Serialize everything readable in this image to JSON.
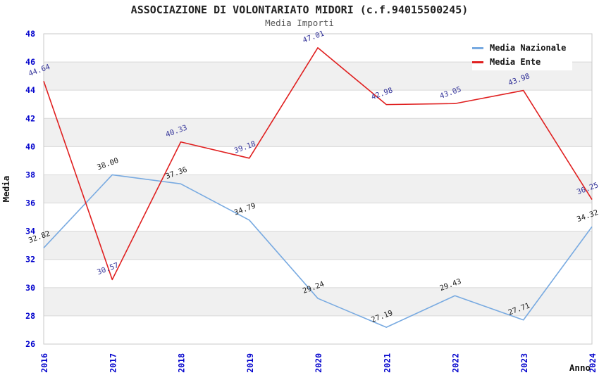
{
  "chart_data": {
    "type": "line",
    "title": "ASSOCIAZIONE DI VOLONTARIATO MIDORI (c.f.94015500245)",
    "subtitle": "Media Importi",
    "xlabel": "Anno",
    "ylabel": "Media",
    "categories": [
      "2016",
      "2017",
      "2018",
      "2019",
      "2020",
      "2021",
      "2022",
      "2023",
      "2024"
    ],
    "series": [
      {
        "name": "Media Nazionale",
        "color": "#78aae1",
        "label_color": "#1a1a1a",
        "values": [
          32.82,
          38.0,
          37.36,
          34.79,
          29.24,
          27.19,
          29.43,
          27.71,
          34.32
        ]
      },
      {
        "name": "Media Ente",
        "color": "#e02020",
        "label_color": "#333399",
        "values": [
          44.64,
          30.57,
          40.33,
          39.18,
          47.01,
          42.98,
          43.05,
          43.98,
          36.25
        ]
      }
    ],
    "ylim": [
      26,
      48
    ],
    "ytick_step": 2,
    "yticks": [
      26,
      28,
      30,
      32,
      34,
      36,
      38,
      40,
      42,
      44,
      46,
      48
    ],
    "tick_color": "#0000cc",
    "label_rotation": -20,
    "legend_position": "top-right",
    "grid": {
      "band_color": "#f0f0f0",
      "line_color": "#d8d8d8",
      "border_color": "#c9c9c9",
      "bands_alternate": true,
      "vertical_gridlines": false
    }
  }
}
